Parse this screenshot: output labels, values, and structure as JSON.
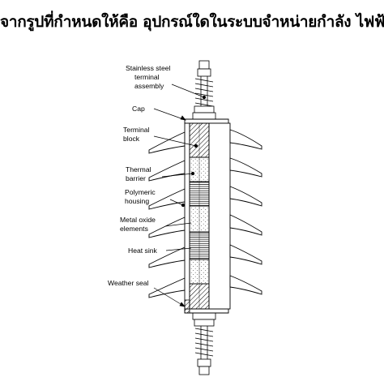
{
  "question": "จากรูปที่กำหนดให้คือ อุปกรณ์ใดในระบบจำหน่ายกำลัง ไฟฟ้า",
  "labels": {
    "terminal_assembly": [
      "Stainless steel",
      "terminal",
      "assembly"
    ],
    "cap": [
      "Cap"
    ],
    "terminal_block": [
      "Terminal",
      "block"
    ],
    "thermal_barrier": [
      "Thermal",
      "barrier"
    ],
    "polymeric_housing": [
      "Polymeric",
      "housing"
    ],
    "metal_oxide": [
      "Metal oxide",
      "elements"
    ],
    "heat_sink": [
      "Heat sink"
    ],
    "weather_seal": [
      "Weather seal"
    ]
  },
  "colors": {
    "line": "#000000",
    "background": "#ffffff"
  }
}
